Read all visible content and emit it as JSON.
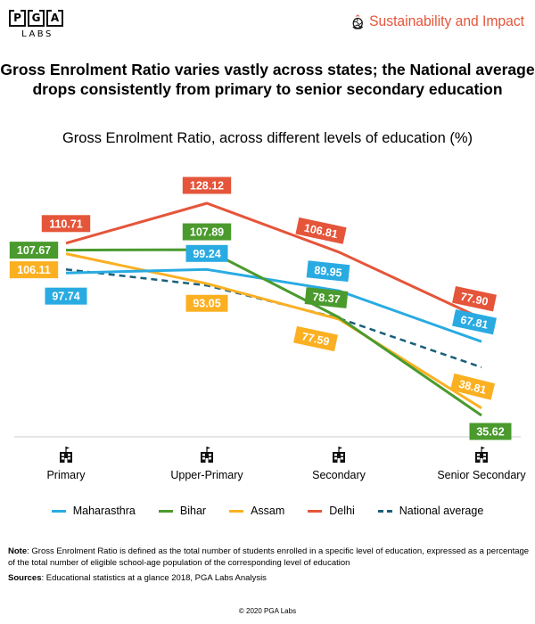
{
  "header": {
    "logo_letters": [
      "P",
      "G",
      "A"
    ],
    "logo_sub": "LABS",
    "brand_label": "Sustainability and Impact",
    "brand_color": "#e5553a"
  },
  "headline": {
    "line1": "Gross Enrolment Ratio varies vastly across states; the National average",
    "line2": "drops consistently from primary to senior secondary education"
  },
  "chart_data": {
    "type": "line",
    "title": "Gross Enrolment Ratio, across different levels of education (%)",
    "xlabel": "",
    "ylabel": "",
    "categories": [
      "Primary",
      "Upper-Primary",
      "Secondary",
      "Senior Secondary"
    ],
    "category_icon": "school-building-icon",
    "grid": false,
    "legend_position": "bottom",
    "series": [
      {
        "name": "Maharasthra",
        "color": "#29abe2",
        "dashed": false,
        "values": [
          97.74,
          99.24,
          89.95,
          67.81
        ],
        "labels": [
          "97.74",
          "99.24",
          "89.95",
          "67.81"
        ]
      },
      {
        "name": "Bihar",
        "color": "#4a9a2e",
        "dashed": false,
        "values": [
          107.67,
          107.89,
          78.37,
          35.62
        ],
        "labels": [
          "107.67",
          "107.89",
          "78.37",
          "35.62"
        ]
      },
      {
        "name": "Assam",
        "color": "#fbb022",
        "dashed": false,
        "values": [
          106.11,
          93.05,
          77.59,
          38.81
        ],
        "labels": [
          "106.11",
          "93.05",
          "77.59",
          "38.81"
        ]
      },
      {
        "name": "Delhi",
        "color": "#e5553a",
        "dashed": false,
        "values": [
          110.71,
          128.12,
          106.81,
          77.9
        ],
        "labels": [
          "110.71",
          "128.12",
          "106.81",
          "77.90"
        ]
      },
      {
        "name": "National average",
        "color": "#1a5f7a",
        "dashed": true,
        "values": [
          99.3,
          92.3,
          78.0,
          56.6
        ],
        "labels": [],
        "estimated": true
      }
    ]
  },
  "notes": {
    "note_label": "Note",
    "note_text": ": Gross Enrolment Ratio is defined as the total number of students enrolled in a specific level of education, expressed as a percentage of the total number of eligible school-age population of the corresponding level of education",
    "sources_label": "Sources",
    "sources_text": ": Educational statistics at a glance 2018, PGA Labs Analysis",
    "copyright": "© 2020 PGA Labs"
  }
}
